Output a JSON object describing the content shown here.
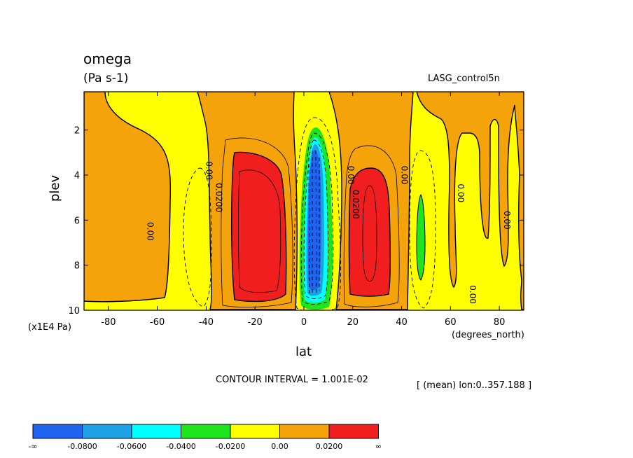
{
  "chart_data": {
    "type": "heatmap",
    "title": "omega",
    "units": "(Pa s-1)",
    "source": "LASG_control5n",
    "xlabel": "lat",
    "xunits": "(degrees_north)",
    "ylabel": "plev",
    "yunits": "(x1E4 Pa)",
    "xlim": [
      -90,
      90
    ],
    "ylim": [
      0.3,
      10
    ],
    "y_inverted": true,
    "x_ticks": [
      "-80",
      "-60",
      "-40",
      "-20",
      "0",
      "20",
      "40",
      "60",
      "80"
    ],
    "x_tick_values": [
      -80,
      -60,
      -40,
      -20,
      0,
      20,
      40,
      60,
      80
    ],
    "y_ticks": [
      "2",
      "4",
      "6",
      "8",
      "10"
    ],
    "y_tick_values": [
      2,
      4,
      6,
      8,
      10
    ],
    "contour_interval_text": "CONTOUR INTERVAL = 1.001E-02",
    "mean_text": "[ (mean) lon:0..357.188 ]",
    "contour_labels": [
      {
        "text": "0.00",
        "lat": -64,
        "plev": 6.5
      },
      {
        "text": "0.00",
        "lat": -40,
        "plev": 3.8
      },
      {
        "text": "0.0200",
        "lat": -36,
        "plev": 5.0
      },
      {
        "text": "0.00",
        "lat": 18,
        "plev": 4.0
      },
      {
        "text": "0.0200",
        "lat": 20,
        "plev": 5.3
      },
      {
        "text": "0.00",
        "lat": 40,
        "plev": 4.0
      },
      {
        "text": "0.00",
        "lat": 63,
        "plev": 4.8
      },
      {
        "text": "0.00",
        "lat": 82,
        "plev": 6.0
      },
      {
        "text": "0.00",
        "lat": 68,
        "plev": 9.3
      }
    ],
    "regions": [
      {
        "name": "orange-left",
        "level": "0.00 to 0.0200"
      },
      {
        "name": "red-left",
        "level": "> 0.0200"
      },
      {
        "name": "orange-mid-left",
        "level": "0.00 to 0.0200"
      },
      {
        "name": "red-right",
        "level": "> 0.0200"
      },
      {
        "name": "orange-mid-right",
        "level": "0.00 to 0.0200"
      },
      {
        "name": "orange-far-right",
        "level": "0.00 to 0.0200"
      },
      {
        "name": "green-core",
        "level": "-0.0400 to -0.0200"
      },
      {
        "name": "cyan-core",
        "level": "-0.0600 to -0.0400"
      },
      {
        "name": "blue-core",
        "level": "< -0.0800"
      },
      {
        "name": "green-48n",
        "level": "-0.0400 to -0.0200"
      }
    ],
    "legend": {
      "colors": [
        "#1e64f0",
        "#1ea0e6",
        "#00ffff",
        "#1ee61e",
        "#ffff00",
        "#f5a30a",
        "#f01e1e"
      ],
      "labels": [
        "-∞",
        "-0.0800",
        "-0.0600",
        "-0.0400",
        "-0.0200",
        "0.00",
        "0.0200",
        "∞"
      ]
    }
  }
}
